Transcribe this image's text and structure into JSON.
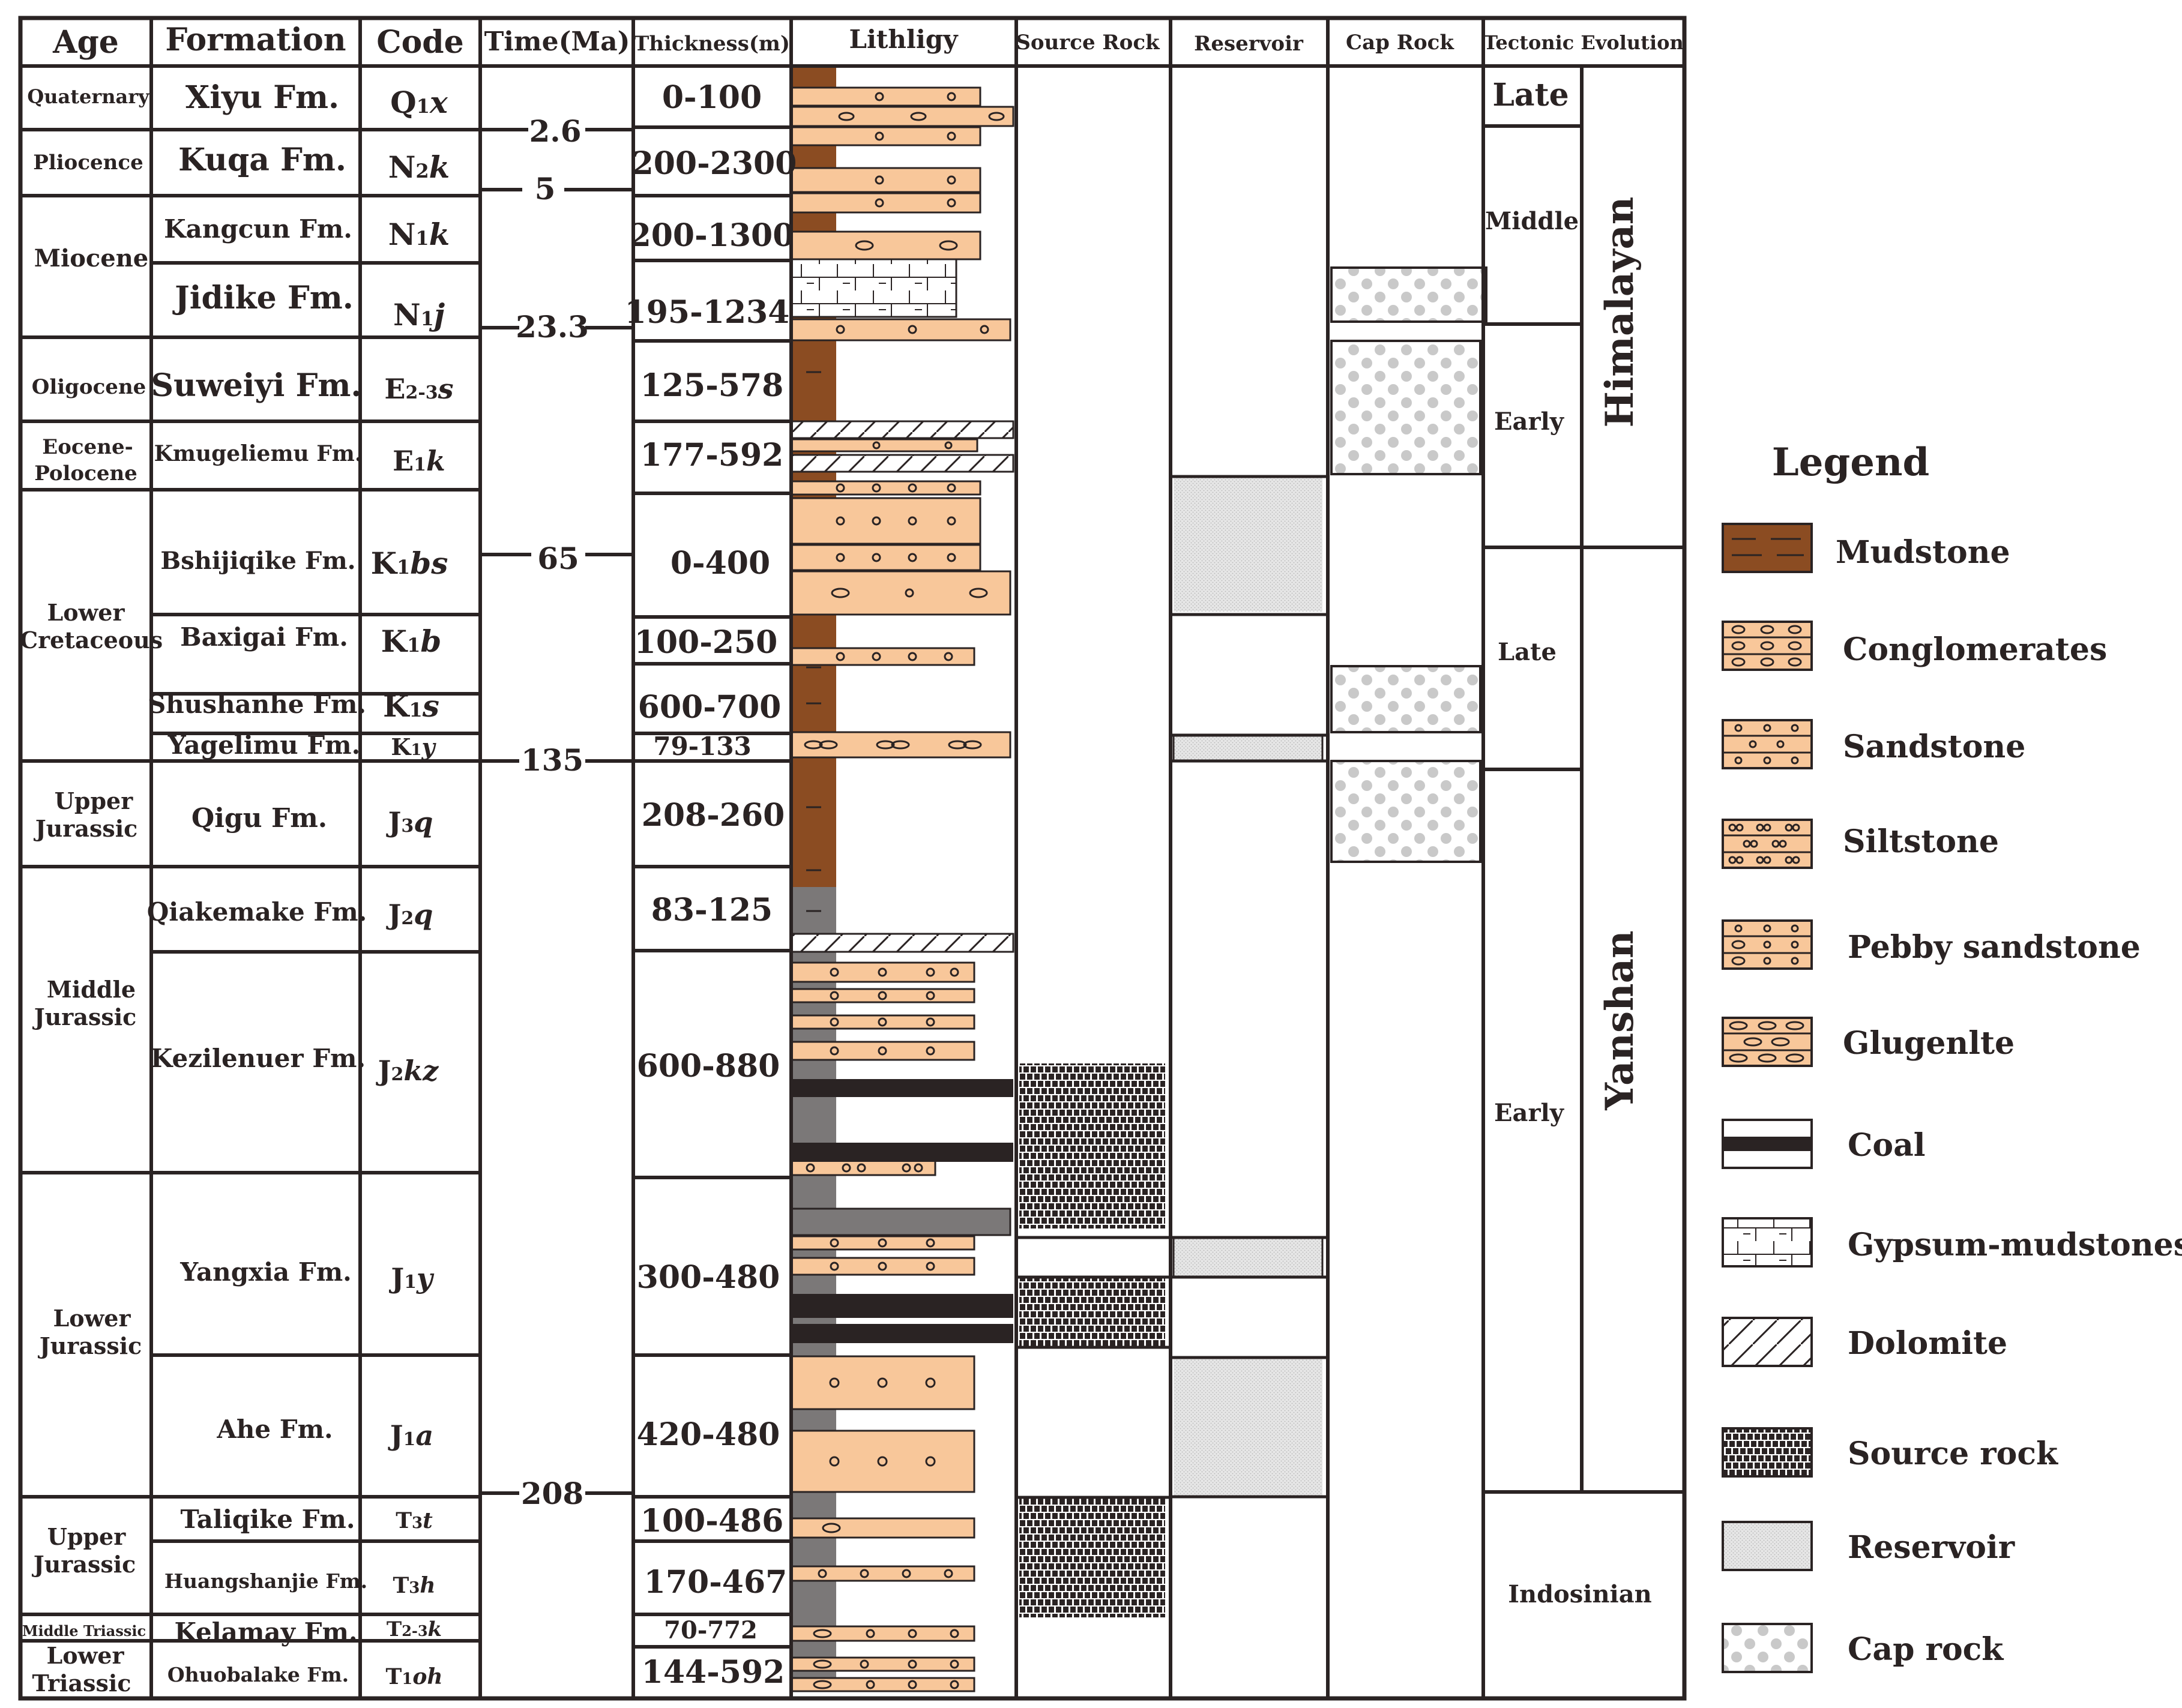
{
  "headers": {
    "age": "Age",
    "formation": "Formation",
    "code": "Code",
    "time": "Time(Ma)",
    "thickness": "Thickness(m)",
    "lithology": "Lithligy",
    "source": "Source Rock",
    "reservoir": "Reservoir",
    "cap": "Cap Rock",
    "tectonic": "Tectonic Evolution"
  },
  "ages": [
    "Quaternary",
    "Pliocence",
    "Miocene",
    "Oligocene",
    "Eocene-",
    "Polocene",
    "Lower",
    "Cretaceous",
    "Upper",
    "Jurassic",
    "Middle",
    "Jurassic",
    "Lower",
    "Jurassic",
    "Upper",
    "Jurassic",
    "Middle Triassic",
    "Lower",
    "Triassic"
  ],
  "formations": [
    "Xiyu Fm.",
    "Kuqa Fm.",
    "Kangcun Fm.",
    "Jidike Fm.",
    "Suweiyi Fm.",
    "Kmugeliemu Fm.",
    "Bshijiqike Fm.",
    "Baxigai Fm.",
    "Shushanhe Fm.",
    "Yagelimu Fm.",
    "Qigu Fm.",
    "Qiakemake Fm.",
    "Kezilenuer Fm.",
    "Yangxia Fm.",
    "Ahe Fm.",
    "Taliqike Fm.",
    "Huangshanjie Fm.",
    "Kelamay Fm.",
    "Ohuobalake Fm."
  ],
  "codes": [
    {
      "m": "Q",
      "s": "1",
      "t": "x"
    },
    {
      "m": "N",
      "s": "2",
      "t": "k"
    },
    {
      "m": "N",
      "s": "1",
      "t": "k"
    },
    {
      "m": "N",
      "s": "1",
      "t": "j"
    },
    {
      "m": "E",
      "s": "2-3",
      "t": "s"
    },
    {
      "m": "E",
      "s": "1",
      "t": "k"
    },
    {
      "m": "K",
      "s": "1",
      "t": "bs"
    },
    {
      "m": "K",
      "s": "1",
      "t": "b"
    },
    {
      "m": "K",
      "s": "1",
      "t": "s"
    },
    {
      "m": "K",
      "s": "1",
      "t": "y"
    },
    {
      "m": "J",
      "s": "3",
      "t": "q"
    },
    {
      "m": "J",
      "s": "2",
      "t": "q"
    },
    {
      "m": "J",
      "s": "2",
      "t": "kz"
    },
    {
      "m": "J",
      "s": "1",
      "t": "y"
    },
    {
      "m": "J",
      "s": "1",
      "t": "a"
    },
    {
      "m": "T",
      "s": "3",
      "t": "t"
    },
    {
      "m": "T",
      "s": "3",
      "t": "h"
    },
    {
      "m": "T",
      "s": "2-3",
      "t": "k"
    },
    {
      "m": "T",
      "s": "1",
      "t": "oh"
    }
  ],
  "times": [
    "2.6",
    "5",
    "23.3",
    "65",
    "135",
    "208"
  ],
  "thicknesses": [
    "0-100",
    "200-2300",
    "200-1300",
    "195-1234",
    "125-578",
    "177-592",
    "0-400",
    "100-250",
    "600-700",
    "79-133",
    "208-260",
    "83-125",
    "600-880",
    "300-480",
    "420-480",
    "100-486",
    "170-467",
    "70-772",
    "144-592"
  ],
  "tectonic": {
    "late": "Late",
    "middle": "Middle",
    "early_him": "Early",
    "late_yan": "Late",
    "early_yan": "Early",
    "himalayan": "Himalayan",
    "yanshan": "Yanshan",
    "indosinian": "Indosinian"
  },
  "legend": {
    "title": "Legend",
    "items": [
      "Mudstone",
      "Conglomerates",
      "Sandstone",
      "Siltstone",
      "Pebby sandstone",
      "Glugenlte",
      "Coal",
      "Gypsum-mudstones",
      "Dolomite",
      "Source rock",
      "Reservoir",
      "Cap rock"
    ]
  },
  "colors": {
    "mudstone": "#8b4c22",
    "sand": "#f8c79a",
    "grey_mud": "#7b7878",
    "line": "#2a2323",
    "reservoir": "#dcdcdc",
    "cap_dot": "#c8c8c8"
  }
}
